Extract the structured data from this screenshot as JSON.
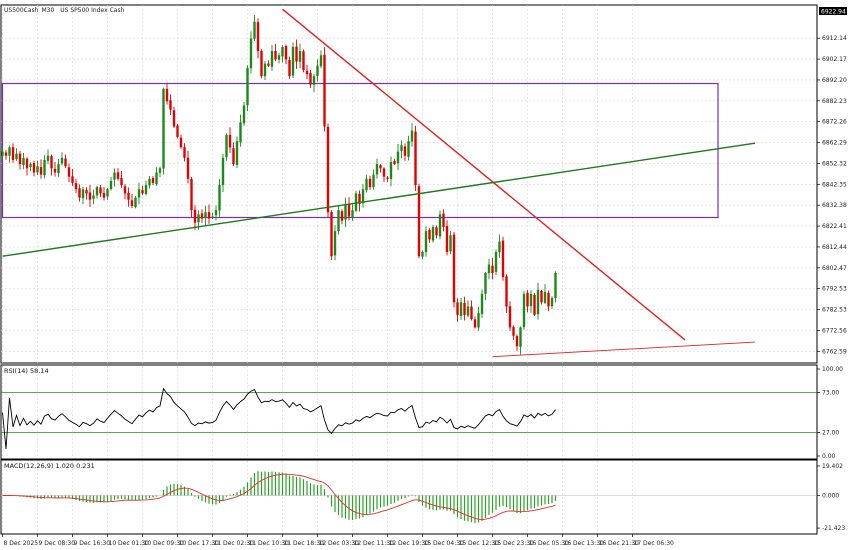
{
  "header": {
    "symbol": "US500Cash",
    "timeframe": "M30",
    "description": "US SP500 Index Cash"
  },
  "colors": {
    "bull": "#1b8a1b",
    "bear": "#e30000",
    "grid": "#d8d8d8",
    "zone": "#7a2bbf",
    "trend_up": "#1d7a1d",
    "trend_down": "#e32020",
    "rsi_line": "#000000",
    "rsi_levels": "#1f8f1f",
    "macd_signal": "#e03030",
    "macd_hist": "#2ea02e"
  },
  "chart_data": [
    {
      "type": "candlestick",
      "panel": "main",
      "ylim": [
        6757.0,
        6928.0
      ],
      "y_ticks": [
        "6912.14",
        "6902.17",
        "6892.20",
        "6882.23",
        "6872.26",
        "6862.29",
        "6852.32",
        "6842.35",
        "6832.38",
        "6822.41",
        "6812.44",
        "6802.47",
        "6792.53",
        "6782.53",
        "6772.56",
        "6762.59"
      ],
      "y_tick_values": [
        6912.14,
        6902.17,
        6892.2,
        6882.23,
        6872.26,
        6862.29,
        6852.32,
        6842.35,
        6832.38,
        6822.41,
        6812.44,
        6802.47,
        6792.53,
        6782.53,
        6772.56,
        6762.59
      ],
      "current_price": "6922.94",
      "x_ticks": [
        "8 Dec 2025",
        "9 Dec 08:30",
        "9 Dec 16:30",
        "10 Dec 01:30",
        "10 Dec 09:30",
        "10 Dec 17:30",
        "11 Dec 02:30",
        "11 Dec 10:30",
        "11 Dec 18:30",
        "12 Dec 03:30",
        "12 Dec 11:30",
        "12 Dec 19:30",
        "15 Dec 04:30",
        "15 Dec 12:30",
        "15 Dec 23:30",
        "16 Dec 05:30",
        "16 Dec 13:30",
        "16 Dec 21:30",
        "17 Dec 06:30"
      ],
      "x_tick_index": [
        0,
        10,
        20,
        30,
        40,
        50,
        60,
        70,
        80,
        90,
        100,
        110,
        120,
        130,
        140,
        150,
        160,
        170,
        180
      ],
      "closes": [
        6858,
        6856,
        6860,
        6854,
        6857,
        6852,
        6855,
        6850,
        6852,
        6848,
        6851,
        6847,
        6854,
        6856,
        6850,
        6848,
        6852,
        6855,
        6851,
        6846,
        6843,
        6840,
        6836,
        6840,
        6838,
        6835,
        6837,
        6841,
        6838,
        6836,
        6840,
        6844,
        6848,
        6845,
        6842,
        6838,
        6835,
        6832,
        6836,
        6840,
        6838,
        6842,
        6845,
        6843,
        6848,
        6850,
        6888,
        6882,
        6878,
        6870,
        6865,
        6860,
        6855,
        6845,
        6830,
        6824,
        6828,
        6826,
        6829,
        6826,
        6827,
        6830,
        6842,
        6855,
        6866,
        6860,
        6852,
        6863,
        6872,
        6880,
        6898,
        6912,
        6920,
        6906,
        6894,
        6900,
        6899,
        6906,
        6902,
        6904,
        6908,
        6902,
        6894,
        6908,
        6901,
        6906,
        6897,
        6895,
        6890,
        6894,
        6899,
        6904,
        6870,
        6829,
        6808,
        6820,
        6830,
        6825,
        6833,
        6827,
        6830,
        6838,
        6833,
        6840,
        6845,
        6841,
        6847,
        6852,
        6850,
        6846,
        6845,
        6853,
        6852,
        6858,
        6861,
        6856,
        6863,
        6868,
        6842,
        6808,
        6810,
        6820,
        6816,
        6822,
        6818,
        6828,
        6822,
        6810,
        6818,
        6786,
        6780,
        6786,
        6780,
        6784,
        6778,
        6774,
        6781,
        6790,
        6800,
        6804,
        6800,
        6810,
        6815,
        6798,
        6784,
        6774,
        6770,
        6765,
        6774,
        6790,
        6784,
        6790,
        6780,
        6792,
        6786,
        6791,
        6784,
        6788,
        6800
      ],
      "series_count_note": "",
      "trendlines": [
        {
          "kind": "descending-resistance",
          "from": [
            80,
            6926
          ],
          "to": [
            195,
            6768
          ]
        },
        {
          "kind": "ascending-support",
          "from": [
            0,
            6808
          ],
          "to": [
            215,
            6862
          ]
        },
        {
          "kind": "ascending-low",
          "from": [
            140,
            6760
          ],
          "to": [
            215,
            6767
          ]
        }
      ],
      "zone": {
        "from_index": 0,
        "to_index": 179,
        "top": 6890.5,
        "bottom": 6826.5
      }
    },
    {
      "type": "line",
      "panel": "rsi",
      "title": "RSI(14) 58.14",
      "ylim": [
        0,
        100
      ],
      "y_ticks": [
        "100.00",
        "73.00",
        "27.00",
        "0.00"
      ],
      "y_tick_values": [
        100,
        73,
        27,
        0
      ],
      "levels": [
        73,
        27
      ]
    },
    {
      "type": "bar",
      "panel": "macd",
      "title": "MACD(12,26,9) 1.020 0.231",
      "ylim": [
        -24,
        22
      ],
      "y_ticks": [
        "19.402",
        "0.000",
        "-21.423"
      ],
      "y_tick_values": [
        19.402,
        0,
        -21.423
      ]
    }
  ]
}
